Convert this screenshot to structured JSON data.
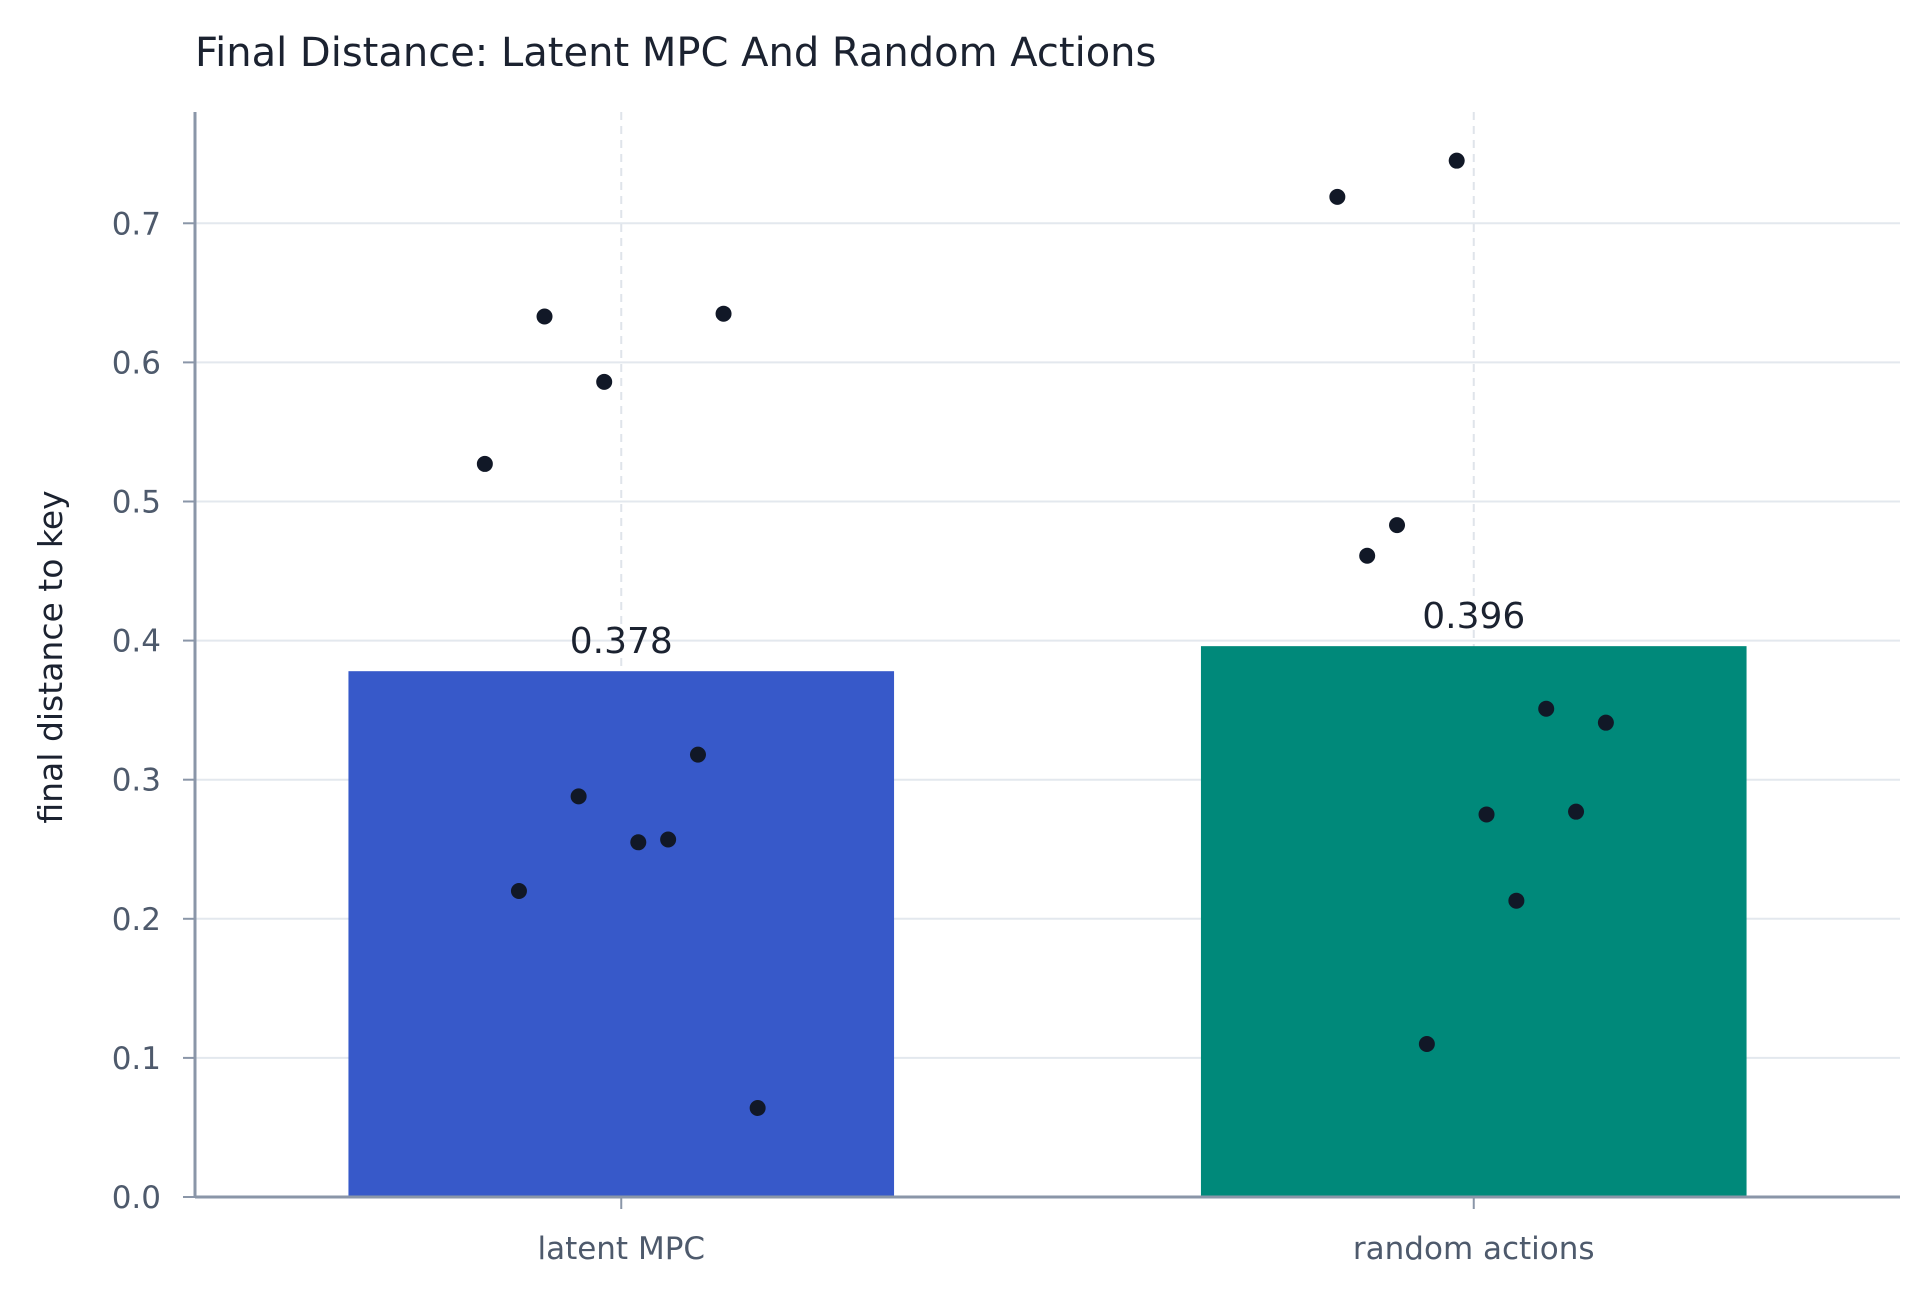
{
  "chart_data": {
    "type": "bar",
    "title": "Final Distance: Latent MPC And Random Actions",
    "ylabel": "final distance to key",
    "xlabel": "",
    "ylim": [
      0,
      0.78
    ],
    "yticks": [
      "0.0",
      "0.1",
      "0.2",
      "0.3",
      "0.4",
      "0.5",
      "0.6",
      "0.7"
    ],
    "categories": [
      "latent MPC",
      "random actions"
    ],
    "values": [
      0.378,
      0.396
    ],
    "value_labels": [
      "0.378",
      "0.396"
    ],
    "colors": [
      "#3759c9",
      "#00897a"
    ],
    "point_color": "#111827",
    "grid": true,
    "points": [
      [
        {
          "offset": -0.16,
          "y": 0.527
        },
        {
          "offset": -0.09,
          "y": 0.633
        },
        {
          "offset": -0.02,
          "y": 0.586
        },
        {
          "offset": 0.12,
          "y": 0.635
        },
        {
          "offset": -0.12,
          "y": 0.22
        },
        {
          "offset": -0.05,
          "y": 0.288
        },
        {
          "offset": 0.02,
          "y": 0.255
        },
        {
          "offset": 0.055,
          "y": 0.257
        },
        {
          "offset": 0.09,
          "y": 0.318
        },
        {
          "offset": 0.16,
          "y": 0.064
        }
      ],
      [
        {
          "offset": -0.16,
          "y": 0.719
        },
        {
          "offset": -0.02,
          "y": 0.745
        },
        {
          "offset": -0.125,
          "y": 0.461
        },
        {
          "offset": -0.09,
          "y": 0.483
        },
        {
          "offset": -0.055,
          "y": 0.11
        },
        {
          "offset": 0.015,
          "y": 0.275
        },
        {
          "offset": 0.05,
          "y": 0.213
        },
        {
          "offset": 0.085,
          "y": 0.351
        },
        {
          "offset": 0.12,
          "y": 0.277
        },
        {
          "offset": 0.155,
          "y": 0.341
        }
      ]
    ]
  }
}
